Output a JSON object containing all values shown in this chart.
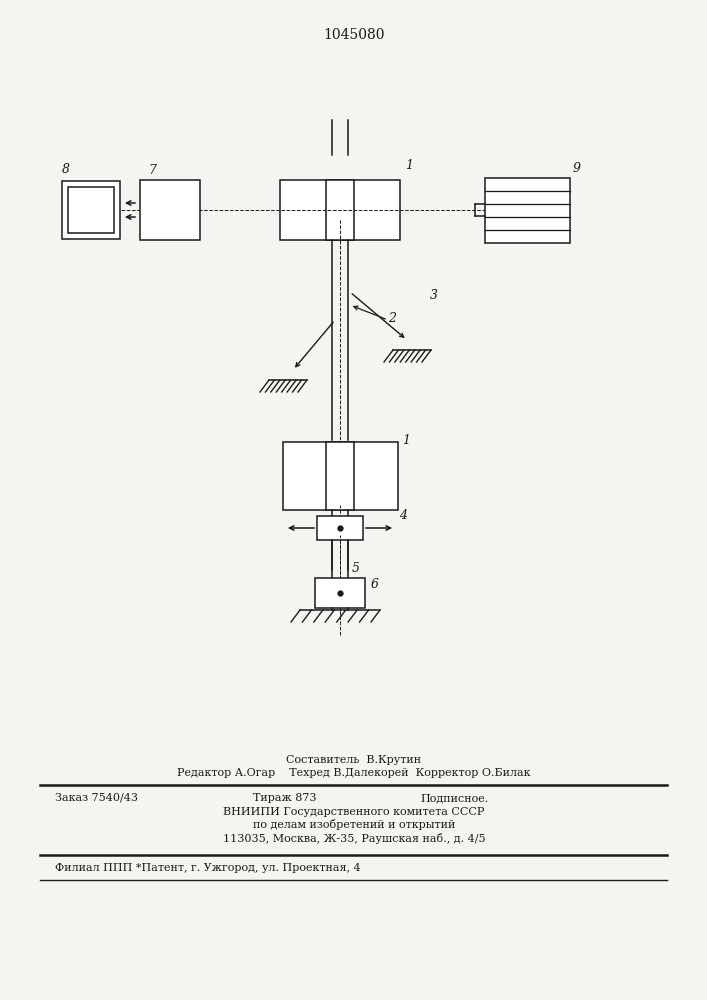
{
  "title": "1045080",
  "title_fontsize": 10,
  "bg_color": "#f5f4f1",
  "line_color": "#1a1a1a",
  "text_color": "#1a1a1a",
  "footer": {
    "line1": "Составитель  В.Крутин",
    "line2": "Редактор А.Огар    Техред В.Далекорей  Корректор О.Билак",
    "line3a": "Заказ 7540/43",
    "line3b": "Тираж 873",
    "line3c": "Подписное.",
    "line4": "ВНИИПИ Государственного комитета СССР",
    "line5": "по делам изобретений и открытий",
    "line6": "113035, Москва, Ж-35, Раушская наб., д. 4/5",
    "line7": "Филиал ППП *Патент, г. Ужгород, ул. Проектная, 4"
  }
}
